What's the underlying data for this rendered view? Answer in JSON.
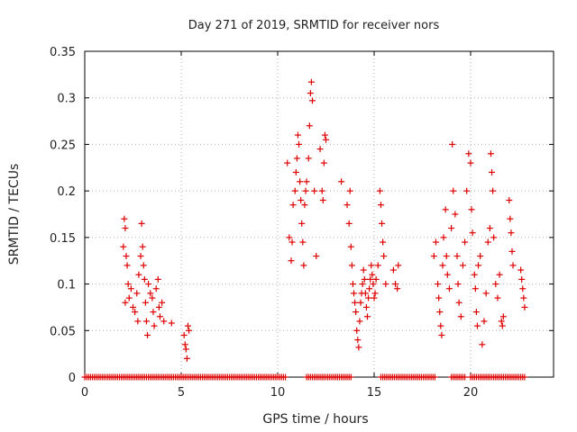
{
  "chart_data": {
    "type": "scatter",
    "title": "Day 271 of 2019, SRMTID for receiver nors",
    "xlabel": "GPS time / hours",
    "ylabel": "SRMTID / TECUs",
    "xlim": [
      0,
      24.3
    ],
    "ylim": [
      0,
      0.35
    ],
    "xticks": [
      0,
      5,
      10,
      15,
      20
    ],
    "xtick_labels": [
      "0",
      "5",
      "10",
      "15",
      "20"
    ],
    "yticks": [
      0,
      0.05,
      0.1,
      0.15,
      0.2,
      0.25,
      0.3,
      0.35
    ],
    "ytick_labels": [
      "0",
      "0.05",
      "0.1",
      "0.15",
      "0.2",
      "0.25",
      "0.3",
      "0.35"
    ],
    "grid": true,
    "marker": "+",
    "color": "#dd0000",
    "series": [
      {
        "name": "SRMTID",
        "points": [
          [
            2.0,
            0.14
          ],
          [
            2.05,
            0.17
          ],
          [
            2.1,
            0.16
          ],
          [
            2.15,
            0.13
          ],
          [
            2.2,
            0.12
          ],
          [
            2.25,
            0.1
          ],
          [
            2.3,
            0.085
          ],
          [
            2.1,
            0.08
          ],
          [
            2.4,
            0.095
          ],
          [
            2.5,
            0.075
          ],
          [
            2.6,
            0.07
          ],
          [
            2.7,
            0.09
          ],
          [
            2.75,
            0.06
          ],
          [
            2.8,
            0.11
          ],
          [
            2.9,
            0.13
          ],
          [
            2.95,
            0.165
          ],
          [
            3.0,
            0.14
          ],
          [
            3.05,
            0.12
          ],
          [
            3.1,
            0.105
          ],
          [
            3.15,
            0.08
          ],
          [
            3.2,
            0.06
          ],
          [
            3.25,
            0.045
          ],
          [
            3.3,
            0.1
          ],
          [
            3.4,
            0.09
          ],
          [
            3.5,
            0.085
          ],
          [
            3.55,
            0.07
          ],
          [
            3.6,
            0.055
          ],
          [
            3.7,
            0.095
          ],
          [
            3.8,
            0.105
          ],
          [
            3.85,
            0.075
          ],
          [
            3.9,
            0.065
          ],
          [
            4.0,
            0.08
          ],
          [
            4.1,
            0.06
          ],
          [
            4.5,
            0.058
          ],
          [
            5.15,
            0.045
          ],
          [
            5.2,
            0.035
          ],
          [
            5.25,
            0.03
          ],
          [
            5.3,
            0.02
          ],
          [
            5.35,
            0.055
          ],
          [
            5.4,
            0.05
          ],
          [
            10.5,
            0.23
          ],
          [
            10.6,
            0.15
          ],
          [
            10.7,
            0.125
          ],
          [
            10.75,
            0.145
          ],
          [
            10.8,
            0.185
          ],
          [
            10.9,
            0.2
          ],
          [
            10.95,
            0.22
          ],
          [
            11.0,
            0.235
          ],
          [
            11.05,
            0.26
          ],
          [
            11.1,
            0.25
          ],
          [
            11.15,
            0.21
          ],
          [
            11.2,
            0.19
          ],
          [
            11.25,
            0.165
          ],
          [
            11.3,
            0.145
          ],
          [
            11.35,
            0.12
          ],
          [
            11.4,
            0.185
          ],
          [
            11.45,
            0.2
          ],
          [
            11.5,
            0.21
          ],
          [
            11.6,
            0.235
          ],
          [
            11.65,
            0.27
          ],
          [
            11.7,
            0.305
          ],
          [
            11.75,
            0.317
          ],
          [
            11.8,
            0.297
          ],
          [
            11.9,
            0.2
          ],
          [
            12.0,
            0.13
          ],
          [
            12.2,
            0.245
          ],
          [
            12.3,
            0.2
          ],
          [
            12.35,
            0.19
          ],
          [
            12.4,
            0.23
          ],
          [
            12.45,
            0.26
          ],
          [
            12.5,
            0.255
          ],
          [
            13.3,
            0.21
          ],
          [
            13.6,
            0.185
          ],
          [
            13.7,
            0.165
          ],
          [
            13.75,
            0.2
          ],
          [
            13.8,
            0.14
          ],
          [
            13.85,
            0.12
          ],
          [
            13.9,
            0.1
          ],
          [
            13.95,
            0.09
          ],
          [
            14.0,
            0.08
          ],
          [
            14.05,
            0.07
          ],
          [
            14.1,
            0.05
          ],
          [
            14.15,
            0.04
          ],
          [
            14.2,
            0.032
          ],
          [
            14.25,
            0.06
          ],
          [
            14.3,
            0.08
          ],
          [
            14.35,
            0.09
          ],
          [
            14.4,
            0.1
          ],
          [
            14.45,
            0.115
          ],
          [
            14.5,
            0.105
          ],
          [
            14.55,
            0.09
          ],
          [
            14.6,
            0.075
          ],
          [
            14.65,
            0.065
          ],
          [
            14.7,
            0.085
          ],
          [
            14.75,
            0.095
          ],
          [
            14.8,
            0.105
          ],
          [
            14.85,
            0.12
          ],
          [
            14.9,
            0.11
          ],
          [
            14.95,
            0.1
          ],
          [
            15.0,
            0.085
          ],
          [
            15.05,
            0.09
          ],
          [
            15.1,
            0.105
          ],
          [
            15.2,
            0.12
          ],
          [
            15.3,
            0.2
          ],
          [
            15.35,
            0.185
          ],
          [
            15.4,
            0.165
          ],
          [
            15.45,
            0.145
          ],
          [
            15.5,
            0.13
          ],
          [
            15.6,
            0.1
          ],
          [
            16.0,
            0.115
          ],
          [
            16.1,
            0.1
          ],
          [
            16.2,
            0.095
          ],
          [
            16.25,
            0.12
          ],
          [
            18.1,
            0.13
          ],
          [
            18.2,
            0.145
          ],
          [
            18.3,
            0.1
          ],
          [
            18.35,
            0.085
          ],
          [
            18.4,
            0.07
          ],
          [
            18.45,
            0.055
          ],
          [
            18.5,
            0.045
          ],
          [
            18.55,
            0.12
          ],
          [
            18.6,
            0.15
          ],
          [
            18.7,
            0.18
          ],
          [
            18.75,
            0.13
          ],
          [
            18.8,
            0.11
          ],
          [
            18.9,
            0.095
          ],
          [
            19.0,
            0.16
          ],
          [
            19.05,
            0.25
          ],
          [
            19.1,
            0.2
          ],
          [
            19.2,
            0.175
          ],
          [
            19.3,
            0.13
          ],
          [
            19.35,
            0.1
          ],
          [
            19.4,
            0.08
          ],
          [
            19.5,
            0.065
          ],
          [
            19.6,
            0.12
          ],
          [
            19.7,
            0.145
          ],
          [
            19.8,
            0.2
          ],
          [
            19.9,
            0.24
          ],
          [
            20.0,
            0.23
          ],
          [
            20.05,
            0.18
          ],
          [
            20.1,
            0.155
          ],
          [
            20.2,
            0.11
          ],
          [
            20.25,
            0.095
          ],
          [
            20.3,
            0.07
          ],
          [
            20.35,
            0.055
          ],
          [
            20.4,
            0.12
          ],
          [
            20.5,
            0.13
          ],
          [
            20.6,
            0.035
          ],
          [
            20.7,
            0.06
          ],
          [
            20.8,
            0.09
          ],
          [
            20.9,
            0.145
          ],
          [
            21.0,
            0.16
          ],
          [
            21.05,
            0.24
          ],
          [
            21.1,
            0.22
          ],
          [
            21.15,
            0.2
          ],
          [
            21.2,
            0.15
          ],
          [
            21.3,
            0.1
          ],
          [
            21.4,
            0.085
          ],
          [
            21.5,
            0.11
          ],
          [
            21.6,
            0.06
          ],
          [
            21.65,
            0.055
          ],
          [
            21.7,
            0.065
          ],
          [
            22.0,
            0.19
          ],
          [
            22.05,
            0.17
          ],
          [
            22.1,
            0.155
          ],
          [
            22.15,
            0.135
          ],
          [
            22.2,
            0.12
          ],
          [
            22.6,
            0.115
          ],
          [
            22.65,
            0.105
          ],
          [
            22.7,
            0.095
          ],
          [
            22.75,
            0.085
          ],
          [
            22.8,
            0.075
          ]
        ],
        "zero_baseline_segments": [
          [
            0.0,
            10.4
          ],
          [
            11.5,
            13.85
          ],
          [
            15.35,
            18.2
          ],
          [
            19.0,
            19.7
          ],
          [
            20.0,
            22.85
          ]
        ]
      }
    ]
  }
}
